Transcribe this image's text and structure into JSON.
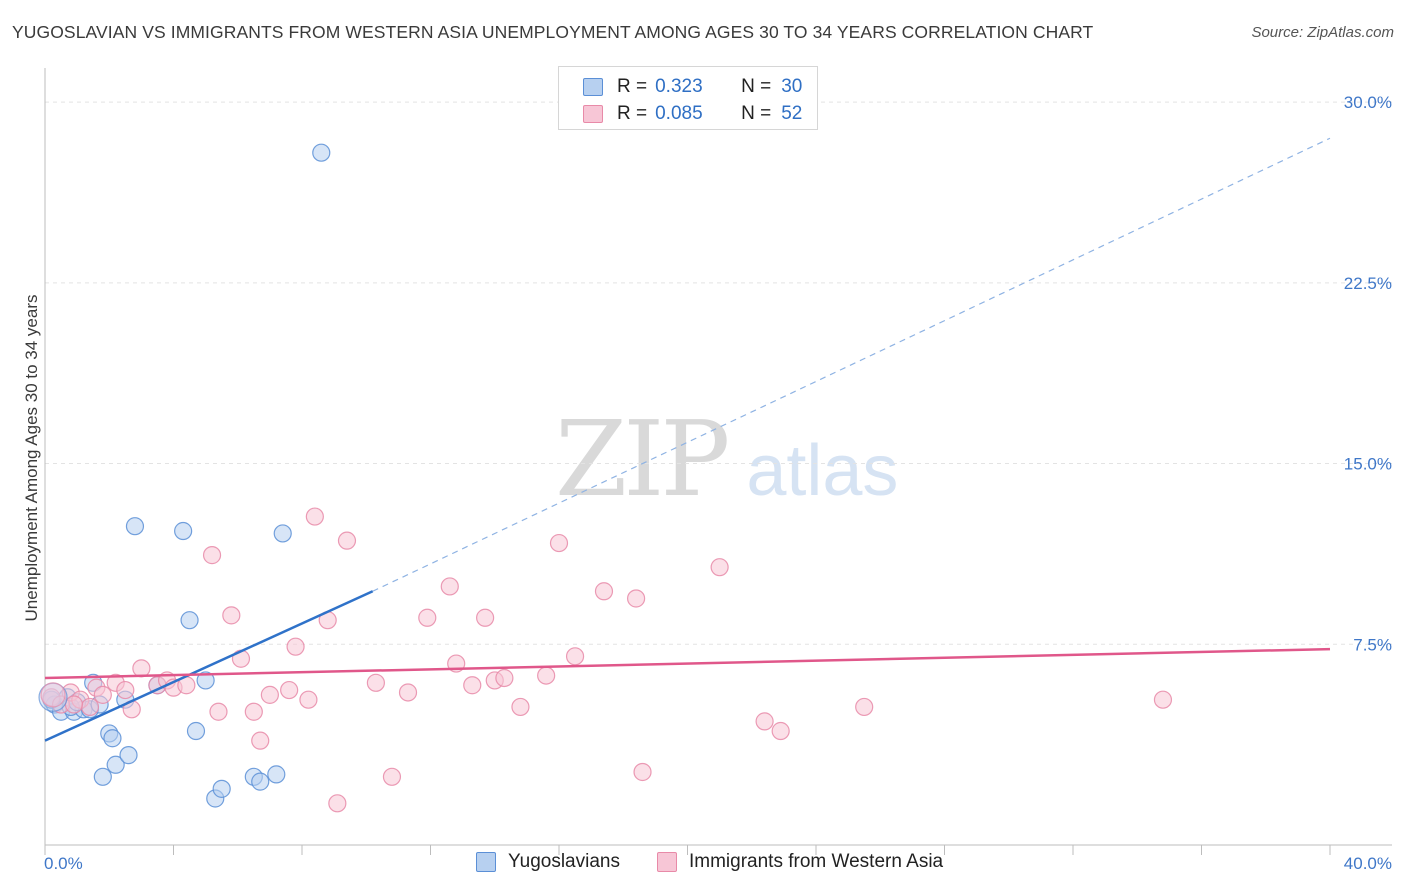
{
  "title": "YUGOSLAVIAN VS IMMIGRANTS FROM WESTERN ASIA UNEMPLOYMENT AMONG AGES 30 TO 34 YEARS CORRELATION CHART",
  "source": "Source: ZipAtlas.com",
  "watermark": {
    "zip": "ZIP",
    "atlas": "atlas"
  },
  "legend": {
    "rows": [
      {
        "r_label": "R =",
        "r_value": "0.323",
        "n_label": "N =",
        "n_value": "30"
      },
      {
        "r_label": "R =",
        "r_value": "0.085",
        "n_label": "N =",
        "n_value": "52"
      }
    ]
  },
  "chart_data": {
    "type": "scatter",
    "title": "YUGOSLAVIAN VS IMMIGRANTS FROM WESTERN ASIA UNEMPLOYMENT AMONG AGES 30 TO 34 YEARS CORRELATION CHART",
    "xlabel": "",
    "ylabel": "Unemployment Among Ages 30 to 34 years",
    "xlim": [
      0,
      40
    ],
    "ylim": [
      0,
      31
    ],
    "x_tick_labels": [
      "0.0%",
      "40.0%"
    ],
    "y_ticks": [
      7.5,
      15,
      22.5,
      30
    ],
    "y_tick_labels": [
      "7.5%",
      "15.0%",
      "22.5%",
      "30.0%"
    ],
    "series": [
      {
        "name": "Yugoslavians",
        "color": "#5b8fd6",
        "fill": "#b7d0f0",
        "r": 0.323,
        "n": 30,
        "trend": {
          "x0": 0,
          "y0": 3.5,
          "x1": 10.2,
          "y1": 9.7,
          "dash_to_x": 40,
          "dash_to_y": 28.5,
          "color": "#2f72c9"
        },
        "points": [
          [
            0.3,
            5.0
          ],
          [
            0.5,
            4.7
          ],
          [
            0.7,
            5.3
          ],
          [
            0.9,
            4.7
          ],
          [
            1.2,
            4.8
          ],
          [
            1.4,
            4.8
          ],
          [
            1.5,
            5.9
          ],
          [
            1.7,
            5.0
          ],
          [
            1.8,
            2.0
          ],
          [
            2.0,
            3.8
          ],
          [
            2.1,
            3.6
          ],
          [
            2.2,
            2.5
          ],
          [
            2.5,
            5.2
          ],
          [
            2.6,
            2.9
          ],
          [
            2.8,
            12.4
          ],
          [
            4.3,
            12.2
          ],
          [
            4.5,
            8.5
          ],
          [
            4.7,
            3.9
          ],
          [
            5.0,
            6.0
          ],
          [
            5.3,
            1.1
          ],
          [
            5.5,
            1.5
          ],
          [
            6.5,
            2.0
          ],
          [
            6.7,
            1.8
          ],
          [
            7.2,
            2.1
          ],
          [
            7.4,
            12.1
          ],
          [
            8.6,
            27.9
          ],
          [
            0.2,
            5.2
          ],
          [
            0.8,
            4.9
          ],
          [
            1.0,
            5.1
          ],
          [
            3.5,
            5.8
          ]
        ]
      },
      {
        "name": "Immigrants from Western Asia",
        "color": "#e88aa8",
        "fill": "#f7c6d6",
        "r": 0.085,
        "n": 52,
        "trend": {
          "x0": 0,
          "y0": 6.1,
          "x1": 40,
          "y1": 7.3,
          "color": "#e0578a"
        },
        "points": [
          [
            0.2,
            5.3
          ],
          [
            0.5,
            5.0
          ],
          [
            0.8,
            5.5
          ],
          [
            1.1,
            5.2
          ],
          [
            1.4,
            4.9
          ],
          [
            1.6,
            5.7
          ],
          [
            1.8,
            5.4
          ],
          [
            2.2,
            5.9
          ],
          [
            2.5,
            5.6
          ],
          [
            2.7,
            4.8
          ],
          [
            3.0,
            6.5
          ],
          [
            3.5,
            5.8
          ],
          [
            3.8,
            6.0
          ],
          [
            4.0,
            5.7
          ],
          [
            4.4,
            5.8
          ],
          [
            5.2,
            11.2
          ],
          [
            5.4,
            4.7
          ],
          [
            5.8,
            8.7
          ],
          [
            6.1,
            6.9
          ],
          [
            6.5,
            4.7
          ],
          [
            6.7,
            3.5
          ],
          [
            7.0,
            5.4
          ],
          [
            7.6,
            5.6
          ],
          [
            7.8,
            7.4
          ],
          [
            8.2,
            5.2
          ],
          [
            8.4,
            12.8
          ],
          [
            8.8,
            8.5
          ],
          [
            9.1,
            0.9
          ],
          [
            9.4,
            11.8
          ],
          [
            10.3,
            5.9
          ],
          [
            10.8,
            2.0
          ],
          [
            11.3,
            5.5
          ],
          [
            11.9,
            8.6
          ],
          [
            12.6,
            9.9
          ],
          [
            12.8,
            6.7
          ],
          [
            13.3,
            5.8
          ],
          [
            13.7,
            8.6
          ],
          [
            14.0,
            6.0
          ],
          [
            14.3,
            6.1
          ],
          [
            14.8,
            4.9
          ],
          [
            15.6,
            6.2
          ],
          [
            16.0,
            11.7
          ],
          [
            16.5,
            7.0
          ],
          [
            17.4,
            9.7
          ],
          [
            18.4,
            9.4
          ],
          [
            18.6,
            2.2
          ],
          [
            21.0,
            10.7
          ],
          [
            22.4,
            4.3
          ],
          [
            22.9,
            3.9
          ],
          [
            25.5,
            4.9
          ],
          [
            34.8,
            5.2
          ],
          [
            0.9,
            5.0
          ]
        ]
      }
    ]
  },
  "bottom_legend": {
    "items": [
      {
        "label": "Yugoslavians"
      },
      {
        "label": "Immigrants from Western Asia"
      }
    ]
  }
}
